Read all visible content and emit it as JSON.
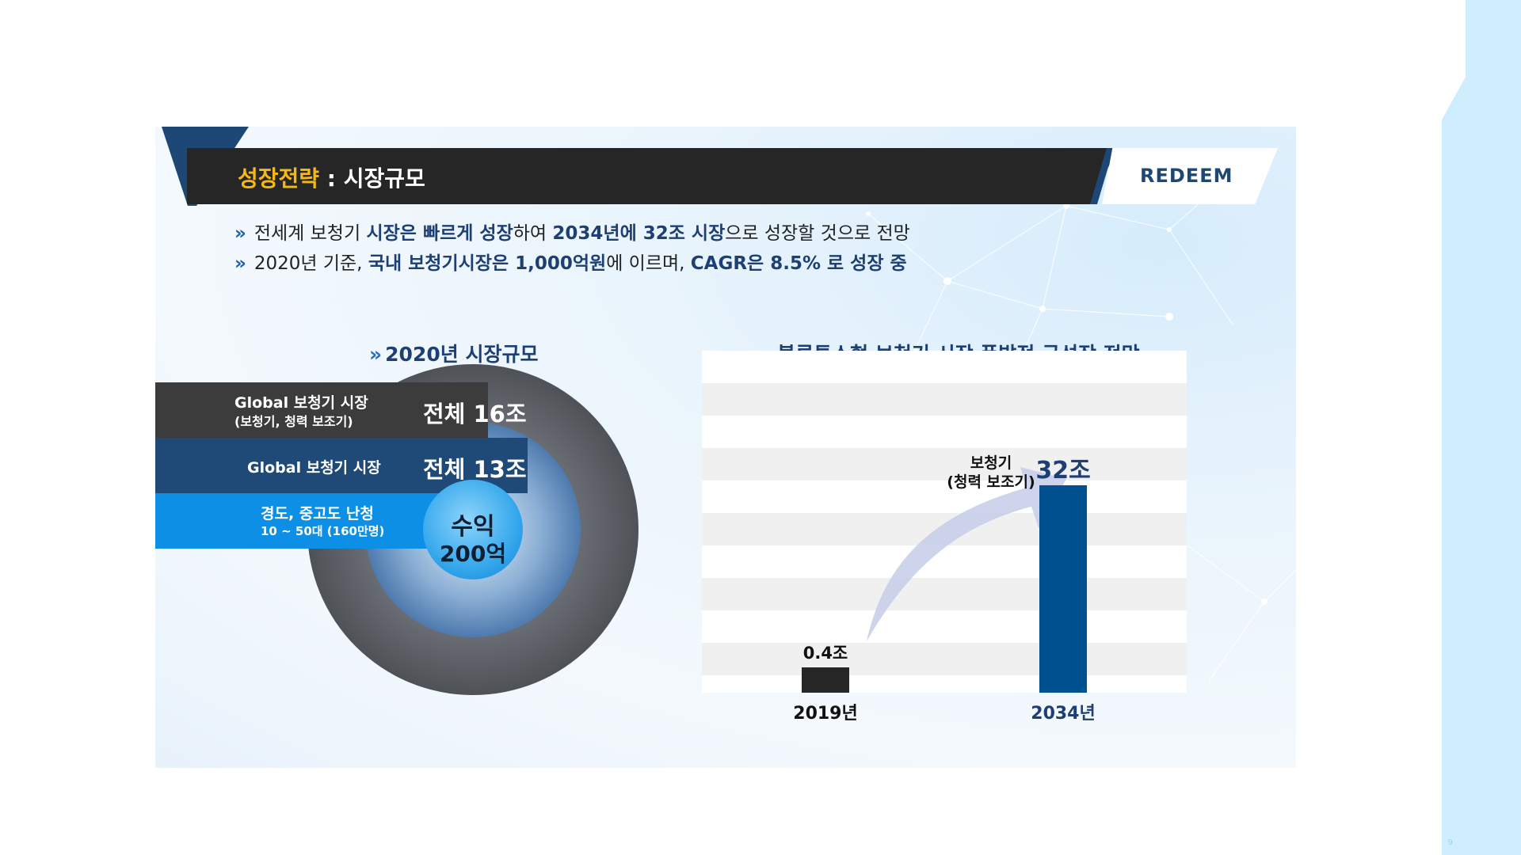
{
  "slide": {
    "title_accent": "성장전략",
    "title_rest": " : 시장규모",
    "logo": "REDEEM",
    "colors": {
      "navy": "#1d4876",
      "accent": "#f6b817",
      "bright_blue": "#0d8fe6",
      "dark": "#262626"
    }
  },
  "bullets": [
    {
      "icon": "chevron-double-right-icon",
      "parts": [
        "전세계 보청기 ",
        "시장은 빠르게 성장",
        "하여 ",
        "2034년에 32조 시장",
        "으로 성장할 것으로 전망"
      ]
    },
    {
      "icon": "chevron-double-right-icon",
      "parts": [
        "2020년 기준, ",
        "국내 보청기시장은 1,000억원",
        "에 이르며, ",
        "CAGR은 8.5% 로 성장 중",
        ""
      ]
    }
  ],
  "market_2020": {
    "heading": "2020년 시장규모",
    "bands": [
      {
        "label_line1": "Global 보청기 시장",
        "label_line2": "(보청기, 청력 보조기)",
        "total": "전체 16조"
      },
      {
        "label_line1": "Global 보청기 시장",
        "label_line2": "",
        "total": "전체 13조"
      },
      {
        "label_line1": "경도, 중고도 난청",
        "label_line2": "10 ~ 50대 (160만명)",
        "total": ""
      }
    ],
    "center_line1": "수익",
    "center_line2": "200억"
  },
  "growth_chart": {
    "heading": "블루투스형 보청기 시장 폭발적 급성장 전망",
    "arrow_label_line1": "보청기",
    "arrow_label_line2": "(청력 보조기)"
  },
  "chart_data": {
    "type": "bar",
    "categories": [
      "2019년",
      "2034년"
    ],
    "values": [
      0.4,
      32
    ],
    "data_labels": [
      "0.4조",
      "32조"
    ],
    "colors": [
      "#262626",
      "#005190"
    ],
    "title": "블루투스형 보청기 시장 폭발적 급성장 전망",
    "ylim": [
      0,
      32
    ]
  },
  "page_number": "9"
}
